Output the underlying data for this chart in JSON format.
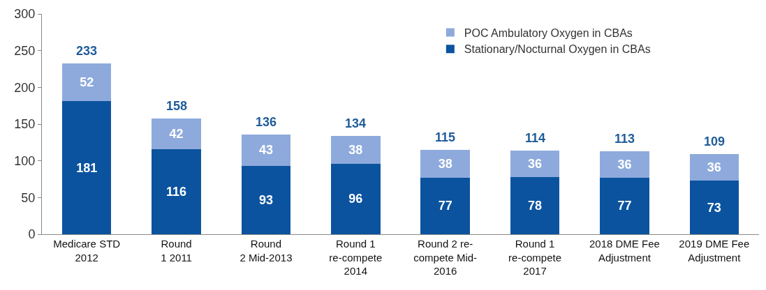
{
  "chart_data": {
    "type": "bar",
    "stacked": true,
    "data_labels": true,
    "legend": "top right",
    "categories": [
      "Medicare STD\n2012",
      "Round\n1 2011",
      "Round\n2 Mid-2013",
      "Round 1\nre-compete\n2014",
      "Round 2 re-\ncompete Mid-\n2016",
      "Round 1\nre-compete\n2017",
      "2018 DME Fee\nAdjustment",
      "2019 DME Fee\nAdjustment"
    ],
    "series": [
      {
        "name": "Stationary/Nocturnal Oxygen in CBAs",
        "color": "#0b539f",
        "values": [
          181,
          116,
          93,
          96,
          77,
          78,
          77,
          73
        ]
      },
      {
        "name": "POC Ambulatory Oxygen in CBAs",
        "color": "#8eaadc",
        "values": [
          52,
          42,
          43,
          38,
          38,
          36,
          36,
          36
        ]
      }
    ],
    "totals": [
      "233",
      "158",
      "136",
      "134",
      "115",
      "114",
      "113",
      "109"
    ],
    "ylim": [
      0,
      300
    ],
    "yticks": [
      0,
      50,
      100,
      150,
      200,
      250,
      300
    ]
  }
}
